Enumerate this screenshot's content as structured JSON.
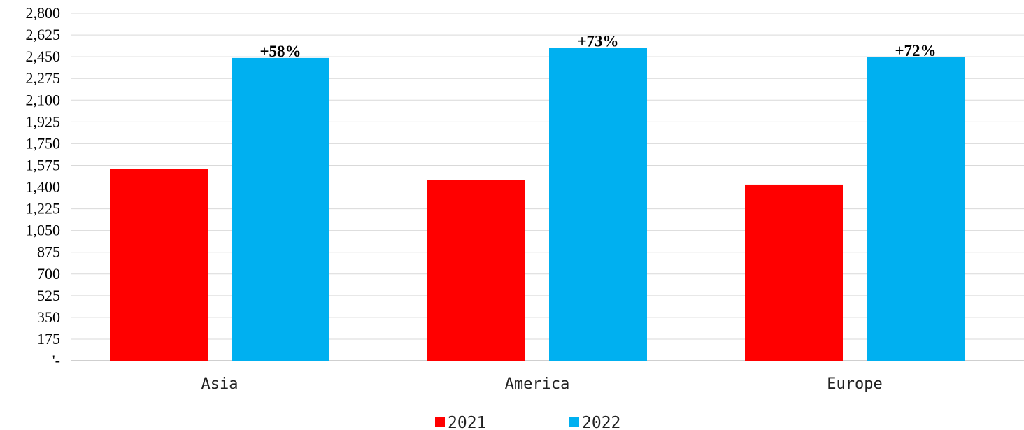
{
  "chart_data": {
    "type": "bar",
    "categories": [
      "Asia",
      "America",
      "Europe"
    ],
    "series": [
      {
        "name": "2021",
        "color": "#FF0000",
        "values": [
          1545,
          1455,
          1420
        ]
      },
      {
        "name": "2022",
        "color": "#00B0F0",
        "values": [
          2440,
          2520,
          2445
        ]
      }
    ],
    "annotations": [
      "+58%",
      "+73%",
      "+72%"
    ],
    "ylim": [
      0,
      2800
    ],
    "ytick_labels": [
      "'-",
      "175",
      "350",
      "525",
      "700",
      "875",
      "1,050",
      "1,225",
      "1,400",
      "1,575",
      "1,750",
      "1,925",
      "2,100",
      "2,275",
      "2,450",
      "2,625",
      "2,800"
    ],
    "grid": true,
    "legend_position": "bottom"
  }
}
